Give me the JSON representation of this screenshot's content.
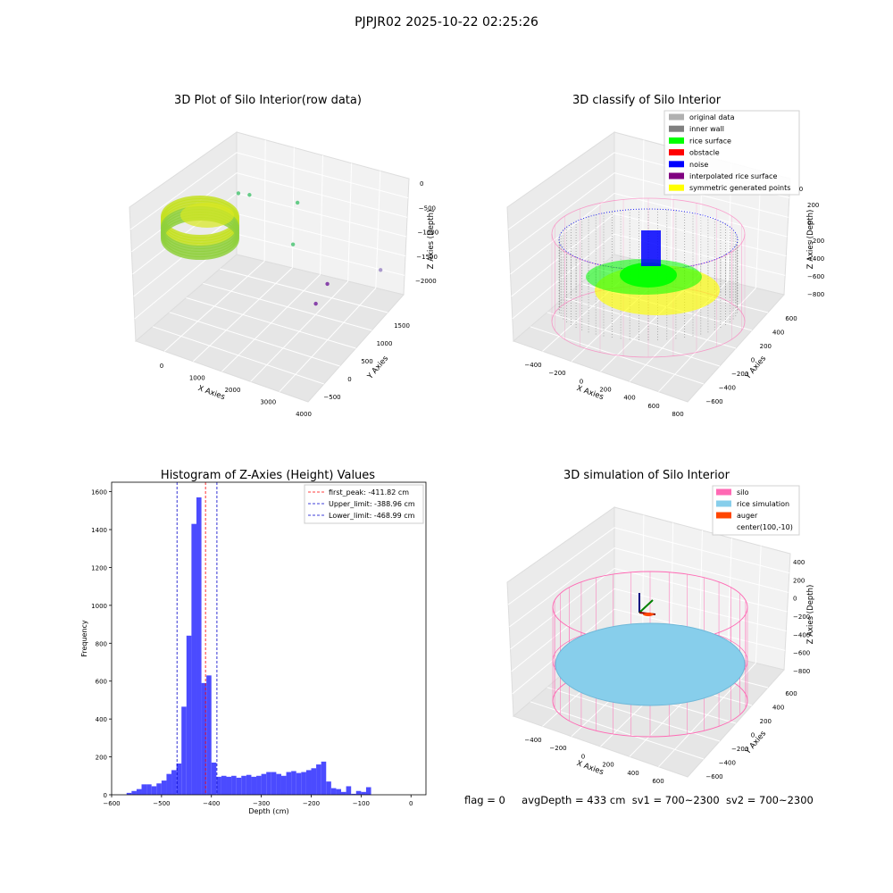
{
  "suptitle": "PJPJR02 2025-10-22 02:25:26",
  "footer": {
    "flag": "flag = 0",
    "avg_depth": "avgDepth = 433 cm",
    "sv1": "sv1 = 700~2300",
    "sv2": "sv2 = 700~2300"
  },
  "colors": {
    "histogram_bar": "#4b4bff",
    "first_peak_line": "#ff0000",
    "limit_line": "#0000cc",
    "silo": "#ff69b4",
    "rice_simulation": "#87ceeb",
    "auger": "#ff4500",
    "original_data": "#b0b0b0",
    "inner_wall": "#808080",
    "rice_surface": "#00ff00",
    "obstacle": "#ff0000",
    "noise": "#0000ff",
    "interpolated_rice_surface": "#800080",
    "symmetric_generated_points": "#ffff00"
  },
  "chart_data": [
    {
      "type": "scatter",
      "title": "3D Plot of Silo Interior(row data)",
      "xlabel": "X Axies",
      "ylabel": "Y Axies",
      "zlabel": "Z Axies (Depth)",
      "x_ticks": [
        "0",
        "1000",
        "2000",
        "3000",
        "4000"
      ],
      "y_ticks": [
        "−500",
        "0",
        "500",
        "1000",
        "1500"
      ],
      "z_ticks": [
        "0",
        "−500",
        "−1000",
        "−1500",
        "−2000"
      ],
      "outlier_points": [
        {
          "x": 300,
          "y": 700,
          "z": -950,
          "color": "#66cc88"
        },
        {
          "x": 500,
          "y": 800,
          "z": -1000,
          "color": "#66cc88"
        },
        {
          "x": 1400,
          "y": 1200,
          "z": -1200,
          "color": "#66cc88"
        },
        {
          "x": 1500,
          "y": 1000,
          "z": -1700,
          "color": "#66cc88"
        },
        {
          "x": 3400,
          "y": 1500,
          "z": -2050,
          "color": "#aa99cc"
        },
        {
          "x": 3600,
          "y": 0,
          "z": -1300,
          "color": "#8844aa"
        },
        {
          "x": 3500,
          "y": -200,
          "z": -1500,
          "color": "#8844aa"
        }
      ]
    },
    {
      "type": "scatter",
      "title": "3D classify of Silo Interior",
      "xlabel": "X Axies",
      "ylabel": "Y Axies",
      "zlabel": "Z Axies (Depth)",
      "x_ticks": [
        "−400",
        "−200",
        "0",
        "200",
        "400",
        "600",
        "800"
      ],
      "y_ticks": [
        "−600",
        "−400",
        "−200",
        "0",
        "200",
        "400",
        "600"
      ],
      "z_ticks": [
        "200",
        "0",
        "−200",
        "−400",
        "−600",
        "−800"
      ],
      "z_partial_tick": "0",
      "legend": [
        "original data",
        "inner wall",
        "rice surface",
        "obstacle",
        "noise",
        "interpolated rice surface",
        "symmetric generated points"
      ],
      "legend_position": "top-right"
    },
    {
      "type": "bar",
      "title": "Histogram of Z-Axies (Height) Values",
      "xlabel": "Depth (cm)",
      "ylabel": "Frequency",
      "xlim": [
        -600,
        30
      ],
      "ylim": [
        0,
        1650
      ],
      "x_ticks": [
        -600,
        -500,
        -400,
        -300,
        -200,
        -100,
        0
      ],
      "y_ticks": [
        0,
        200,
        400,
        600,
        800,
        1000,
        1200,
        1400,
        1600
      ],
      "bin_start": -570,
      "bin_width": 10,
      "values": [
        10,
        20,
        30,
        55,
        55,
        45,
        60,
        75,
        110,
        130,
        165,
        465,
        840,
        1430,
        1570,
        590,
        630,
        170,
        95,
        100,
        95,
        100,
        90,
        100,
        105,
        95,
        100,
        110,
        120,
        120,
        110,
        100,
        120,
        125,
        115,
        120,
        130,
        140,
        160,
        175,
        70,
        35,
        30,
        15,
        45,
        5,
        20,
        15,
        40
      ],
      "lines": [
        {
          "label": "first_peak: -411.82 cm",
          "x": -411.82,
          "color": "#ff0000"
        },
        {
          "label": "Upper_limit: -388.96 cm",
          "x": -388.96,
          "color": "#0000cc"
        },
        {
          "label": "Lower_limit: -468.99 cm",
          "x": -468.99,
          "color": "#0000cc"
        }
      ],
      "legend_position": "top-right"
    },
    {
      "type": "scatter",
      "title": "3D simulation of Silo Interior",
      "xlabel": "X Axies",
      "ylabel": "Y Axies",
      "zlabel": "Z Axies (Depth)",
      "x_ticks": [
        "−400",
        "−200",
        "0",
        "200",
        "400",
        "600"
      ],
      "y_ticks": [
        "−600",
        "−400",
        "−200",
        "0",
        "200",
        "400",
        "600"
      ],
      "z_ticks": [
        "400",
        "200",
        "0",
        "−200",
        "−400",
        "−600",
        "−800"
      ],
      "legend": [
        "silo",
        "rice simulation",
        "auger",
        "center(100,-10)"
      ],
      "legend_position": "top-right"
    }
  ]
}
